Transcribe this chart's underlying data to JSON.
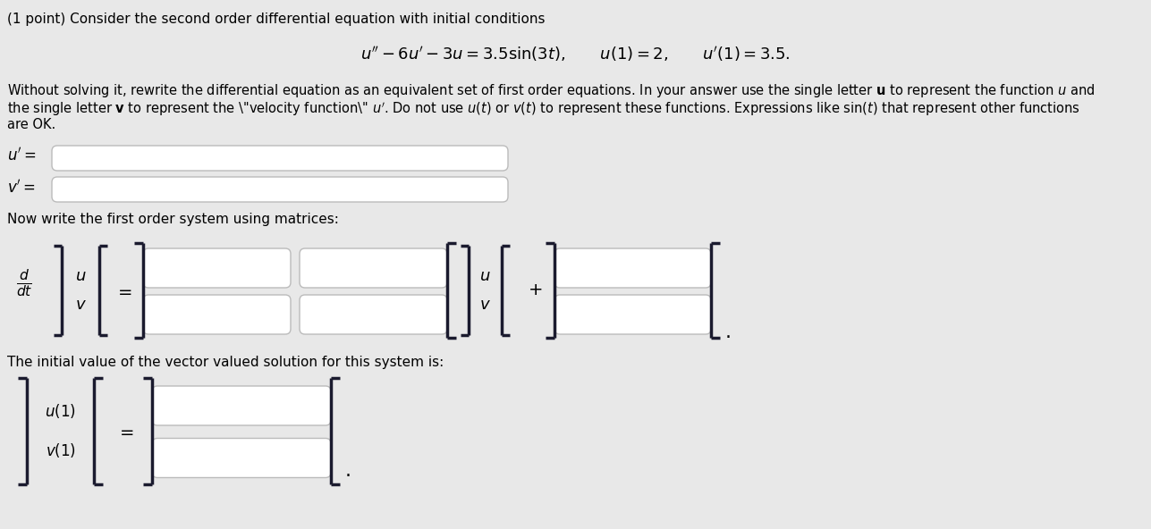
{
  "background_color": "#e8e8e8",
  "text_color": "#000000",
  "title_line": "(1 point) Consider the second order differential equation with initial conditions",
  "matrix_label": "Now write the first order system using matrices:",
  "initial_label": "The initial value of the vector valued solution for this system is:"
}
